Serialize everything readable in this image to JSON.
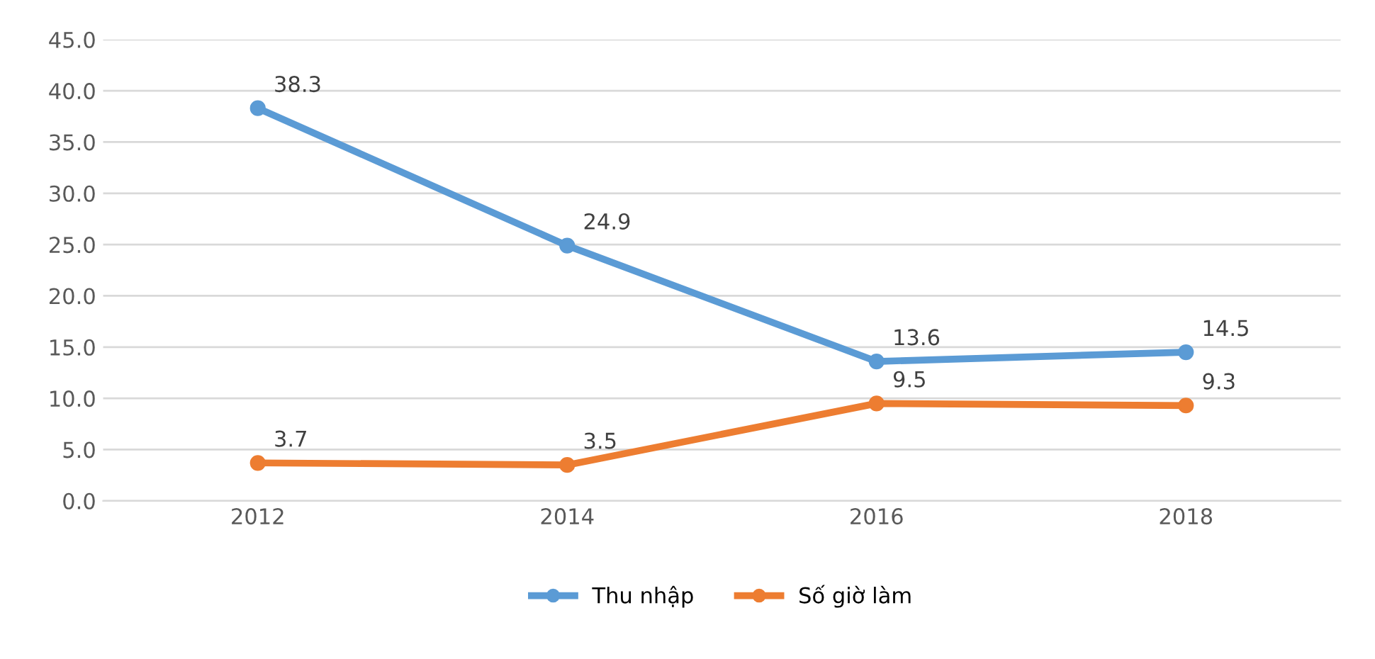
{
  "chart_data": {
    "type": "line",
    "categories": [
      "2012",
      "2014",
      "2016",
      "2018"
    ],
    "series": [
      {
        "name": "Thu nhập",
        "color": "#5b9bd5",
        "values": [
          38.3,
          24.9,
          13.6,
          14.5
        ]
      },
      {
        "name": "Số giờ làm",
        "color": "#ed7d31",
        "values": [
          3.7,
          3.5,
          9.5,
          9.3
        ]
      }
    ],
    "ylim": [
      0,
      45
    ],
    "yticks": [
      {
        "value": 0,
        "label": "0.0"
      },
      {
        "value": 5,
        "label": "5.0"
      },
      {
        "value": 10,
        "label": "10.0"
      },
      {
        "value": 15,
        "label": "15.0"
      },
      {
        "value": 20,
        "label": "20.0"
      },
      {
        "value": 25,
        "label": "25.0"
      },
      {
        "value": 30,
        "label": "30.0"
      },
      {
        "value": 35,
        "label": "35.0"
      },
      {
        "value": 40,
        "label": "40.0"
      },
      {
        "value": 45,
        "label": "45.0"
      }
    ],
    "grid": "y",
    "legend": "bottom",
    "marker": "circle",
    "line_style": "solid",
    "data_labels": true
  }
}
